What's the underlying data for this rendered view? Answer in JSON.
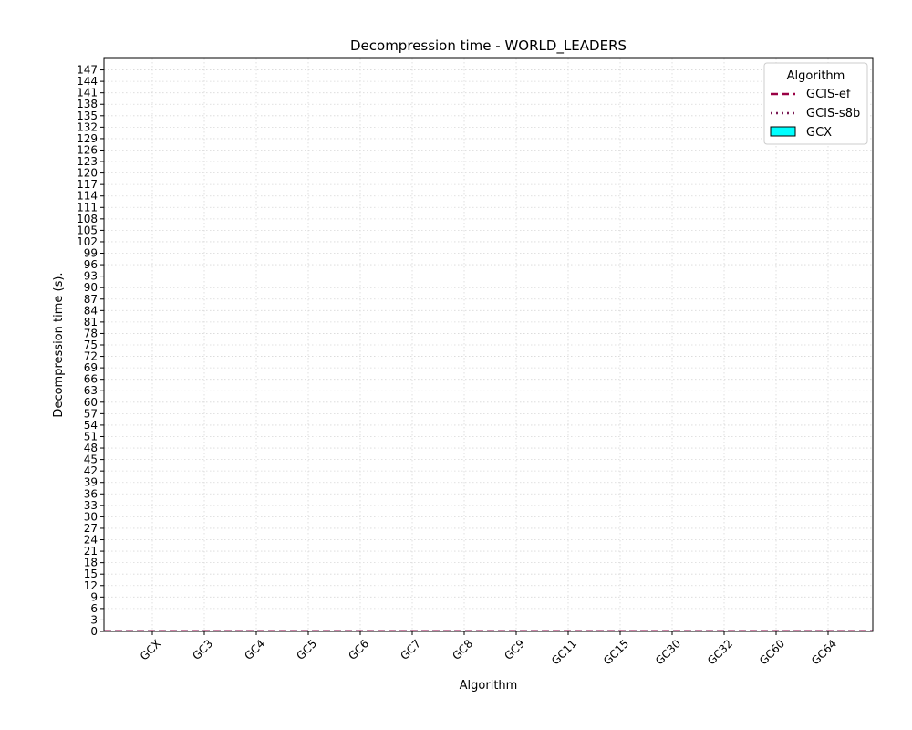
{
  "chart_data": {
    "type": "bar",
    "title": "Decompression time -  WORLD_LEADERS",
    "xlabel": "Algorithm",
    "ylabel": "Decompression time (s).",
    "categories": [
      "GCX",
      "GC3",
      "GC4",
      "GC5",
      "GC6",
      "GC7",
      "GC8",
      "GC9",
      "GC11",
      "GC15",
      "GC30",
      "GC32",
      "GC60",
      "GC64"
    ],
    "series": [
      {
        "name": "GCX",
        "values": [
          0,
          0,
          0,
          0,
          0,
          0,
          0,
          0,
          0,
          0,
          0,
          0,
          0,
          0
        ],
        "color": "#00ffff",
        "edge_color": "#000000"
      }
    ],
    "reference_lines": [
      {
        "name": "GCIS-ef",
        "value": 0.0,
        "color": "#990044",
        "style": "dashed"
      },
      {
        "name": "GCIS-s8b",
        "value": 0.0,
        "color": "#7a1a55",
        "style": "dotted"
      }
    ],
    "ylim": [
      0,
      150
    ],
    "yticks": [
      0,
      3,
      6,
      9,
      12,
      15,
      18,
      21,
      24,
      27,
      30,
      33,
      36,
      39,
      42,
      45,
      48,
      51,
      54,
      57,
      60,
      63,
      66,
      69,
      72,
      75,
      78,
      81,
      84,
      87,
      90,
      93,
      96,
      99,
      102,
      105,
      108,
      111,
      114,
      117,
      120,
      123,
      126,
      129,
      132,
      135,
      138,
      141,
      144,
      147
    ],
    "grid": true,
    "legend": {
      "title": "Algorithm",
      "position": "top-right",
      "entries": [
        "GCIS-ef",
        "GCIS-s8b",
        "GCX"
      ]
    }
  }
}
